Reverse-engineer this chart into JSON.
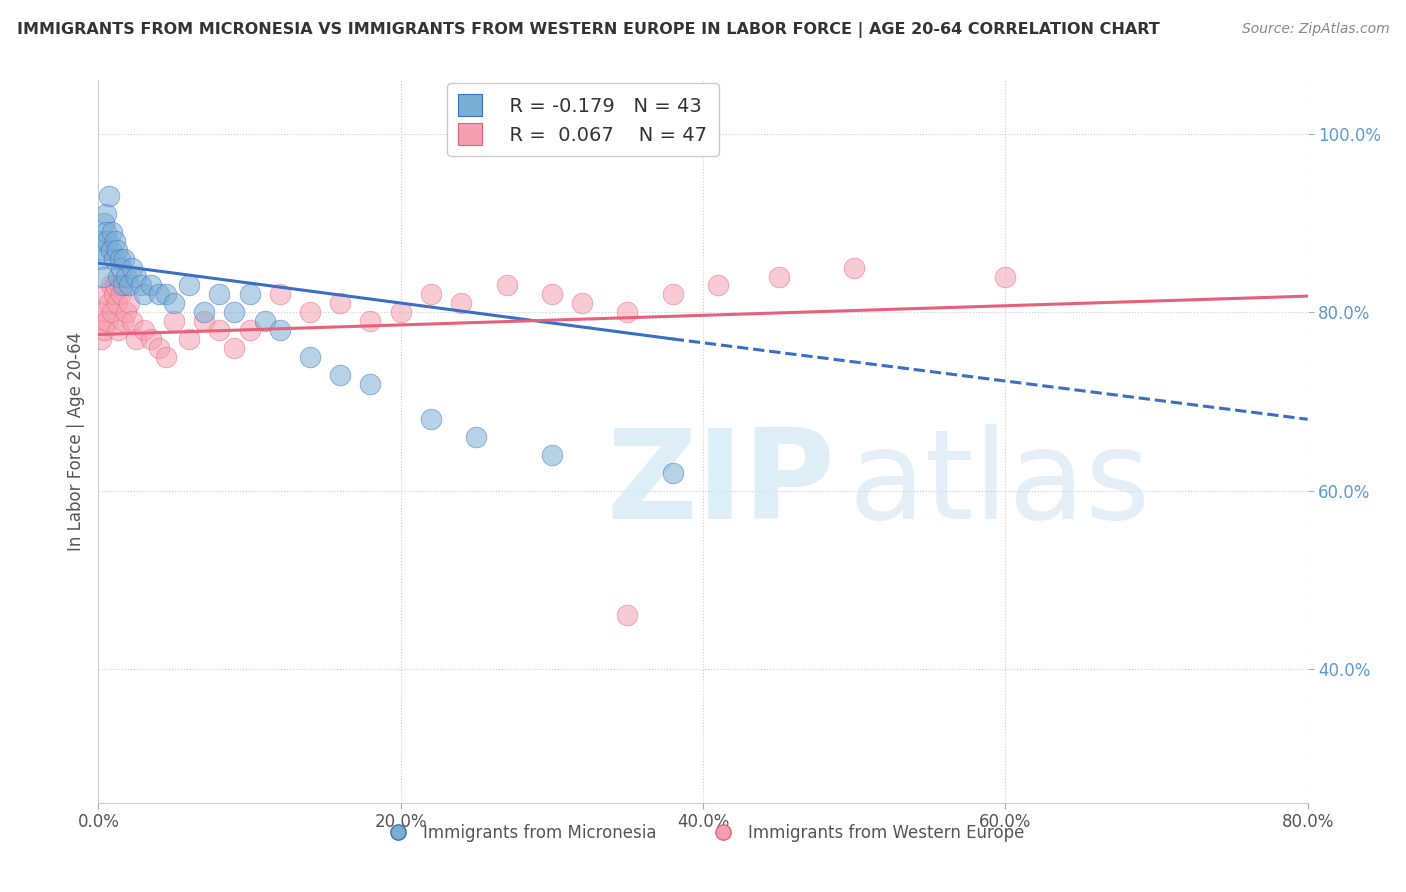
{
  "title": "IMMIGRANTS FROM MICRONESIA VS IMMIGRANTS FROM WESTERN EUROPE IN LABOR FORCE | AGE 20-64 CORRELATION CHART",
  "source": "Source: ZipAtlas.com",
  "xlabel_series1": "Immigrants from Micronesia",
  "xlabel_series2": "Immigrants from Western Europe",
  "ylabel": "In Labor Force | Age 20-64",
  "R1": -0.179,
  "N1": 43,
  "R2": 0.067,
  "N2": 47,
  "color1": "#7AADD4",
  "color2": "#F4A0B0",
  "line_color1": "#3B6FC4",
  "line_color2": "#E8607A",
  "tick_color": "#5B9BD5",
  "xlim": [
    0.0,
    0.8
  ],
  "ylim": [
    0.25,
    1.06
  ],
  "xticks": [
    0.0,
    0.2,
    0.4,
    0.6,
    0.8
  ],
  "yticks": [
    0.4,
    0.6,
    0.8,
    1.0
  ],
  "ytick_labels_right": [
    "40.0%",
    "60.0%",
    "80.0%",
    "100.0%"
  ],
  "xtick_labels": [
    "0.0%",
    "",
    "20.0%",
    "",
    "40.0%",
    "",
    "60.0%",
    "",
    "80.0%"
  ],
  "grid_color": "#CCCCCC",
  "background_color": "#FFFFFF",
  "scatter1_x": [
    0.001,
    0.002,
    0.003,
    0.003,
    0.004,
    0.005,
    0.005,
    0.006,
    0.007,
    0.008,
    0.009,
    0.01,
    0.011,
    0.012,
    0.013,
    0.014,
    0.015,
    0.016,
    0.017,
    0.018,
    0.02,
    0.022,
    0.025,
    0.028,
    0.03,
    0.035,
    0.04,
    0.045,
    0.05,
    0.06,
    0.07,
    0.08,
    0.09,
    0.1,
    0.11,
    0.12,
    0.14,
    0.16,
    0.18,
    0.22,
    0.25,
    0.3,
    0.38
  ],
  "scatter1_y": [
    0.88,
    0.86,
    0.87,
    0.84,
    0.9,
    0.91,
    0.89,
    0.88,
    0.93,
    0.87,
    0.89,
    0.86,
    0.88,
    0.87,
    0.84,
    0.86,
    0.85,
    0.83,
    0.86,
    0.84,
    0.83,
    0.85,
    0.84,
    0.83,
    0.82,
    0.83,
    0.82,
    0.82,
    0.81,
    0.83,
    0.8,
    0.82,
    0.8,
    0.82,
    0.79,
    0.78,
    0.75,
    0.73,
    0.72,
    0.68,
    0.66,
    0.64,
    0.62
  ],
  "scatter2_x": [
    0.001,
    0.002,
    0.003,
    0.004,
    0.005,
    0.006,
    0.007,
    0.008,
    0.009,
    0.01,
    0.011,
    0.012,
    0.013,
    0.014,
    0.015,
    0.016,
    0.018,
    0.02,
    0.022,
    0.025,
    0.03,
    0.035,
    0.04,
    0.045,
    0.05,
    0.06,
    0.07,
    0.08,
    0.09,
    0.1,
    0.12,
    0.14,
    0.16,
    0.18,
    0.2,
    0.22,
    0.24,
    0.27,
    0.3,
    0.32,
    0.35,
    0.38,
    0.41,
    0.45,
    0.5,
    0.6,
    0.35
  ],
  "scatter2_y": [
    0.79,
    0.77,
    0.8,
    0.78,
    0.82,
    0.79,
    0.81,
    0.83,
    0.8,
    0.82,
    0.83,
    0.81,
    0.78,
    0.83,
    0.82,
    0.79,
    0.8,
    0.81,
    0.79,
    0.77,
    0.78,
    0.77,
    0.76,
    0.75,
    0.79,
    0.77,
    0.79,
    0.78,
    0.76,
    0.78,
    0.82,
    0.8,
    0.81,
    0.79,
    0.8,
    0.82,
    0.81,
    0.83,
    0.82,
    0.81,
    0.8,
    0.82,
    0.83,
    0.84,
    0.85,
    0.84,
    0.46
  ],
  "line1_x0": 0.0,
  "line1_y0": 0.855,
  "line1_x1": 0.38,
  "line1_y1": 0.77,
  "line1_xdash": 0.38,
  "line1_ydash_start": 0.77,
  "line1_xdash_end": 0.8,
  "line1_ydash_end": 0.68,
  "line2_x0": 0.0,
  "line2_y0": 0.775,
  "line2_x1": 0.8,
  "line2_y1": 0.818
}
